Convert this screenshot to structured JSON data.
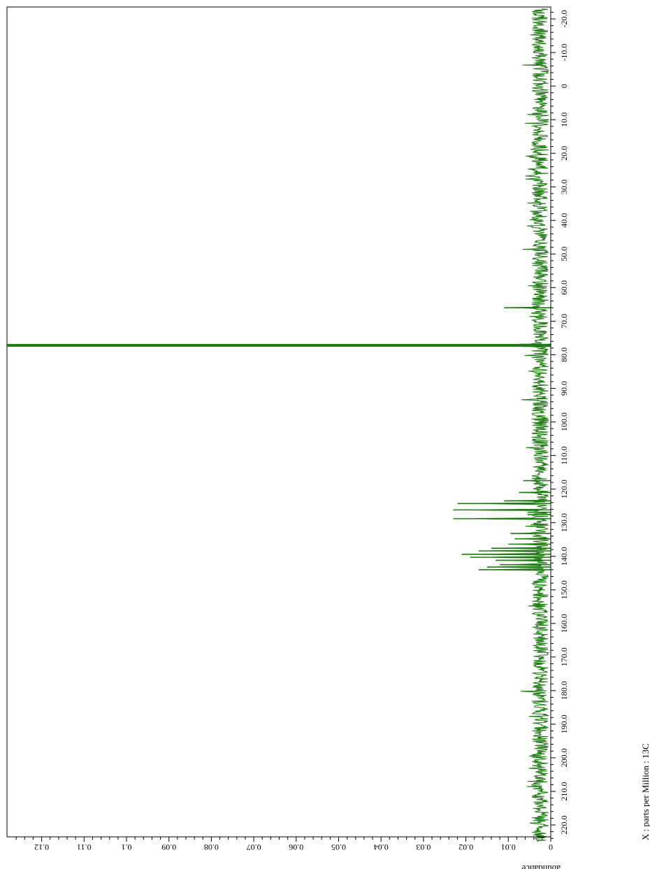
{
  "chart_data": {
    "type": "line",
    "orientation": "rotated-90",
    "title": "",
    "xlabel": "X : parts per Million : 13C",
    "ylabel": "abundance",
    "xlim": [
      225,
      -23
    ],
    "ylim": [
      0,
      0.13
    ],
    "x_ticks": [
      "220.0",
      "210.0",
      "200.0",
      "190.0",
      "180.0",
      "170.0",
      "160.0",
      "150.0",
      "140.0",
      "130.0",
      "120.0",
      "110.0",
      "100.0",
      "90.0",
      "80.0",
      "70.0",
      "60.0",
      "50.0",
      "40.0",
      "30.0",
      "20.0",
      "10.0",
      "0",
      "-10.0",
      "-20.0"
    ],
    "y_ticks": [
      "0",
      "0.01",
      "0.02",
      "0.03",
      "0.04",
      "0.05",
      "0.06",
      "0.07",
      "0.08",
      "0.09",
      "0.1",
      "0.11",
      "0.12"
    ],
    "line_color": "#1e7a12",
    "noise_level": 0.004,
    "peaks": [
      {
        "x": 77.2,
        "y": 0.13
      },
      {
        "x": 76.9,
        "y": 0.0075
      },
      {
        "x": 77.5,
        "y": 0.0068
      },
      {
        "x": 66.0,
        "y": 0.011
      },
      {
        "x": 144.0,
        "y": 0.017
      },
      {
        "x": 143.2,
        "y": 0.015
      },
      {
        "x": 142.5,
        "y": 0.012
      },
      {
        "x": 141.2,
        "y": 0.013
      },
      {
        "x": 140.3,
        "y": 0.019
      },
      {
        "x": 139.4,
        "y": 0.021
      },
      {
        "x": 138.4,
        "y": 0.017
      },
      {
        "x": 137.6,
        "y": 0.014
      },
      {
        "x": 136.4,
        "y": 0.01
      },
      {
        "x": 134.8,
        "y": 0.0085
      },
      {
        "x": 133.2,
        "y": 0.0095
      },
      {
        "x": 128.8,
        "y": 0.023
      },
      {
        "x": 127.6,
        "y": 0.0055
      },
      {
        "x": 126.9,
        "y": 0.0055
      },
      {
        "x": 126.2,
        "y": 0.023
      },
      {
        "x": 124.3,
        "y": 0.022
      },
      {
        "x": 123.5,
        "y": 0.011
      },
      {
        "x": 121.0,
        "y": 0.0075
      },
      {
        "x": 117.5,
        "y": 0.0065
      }
    ]
  }
}
